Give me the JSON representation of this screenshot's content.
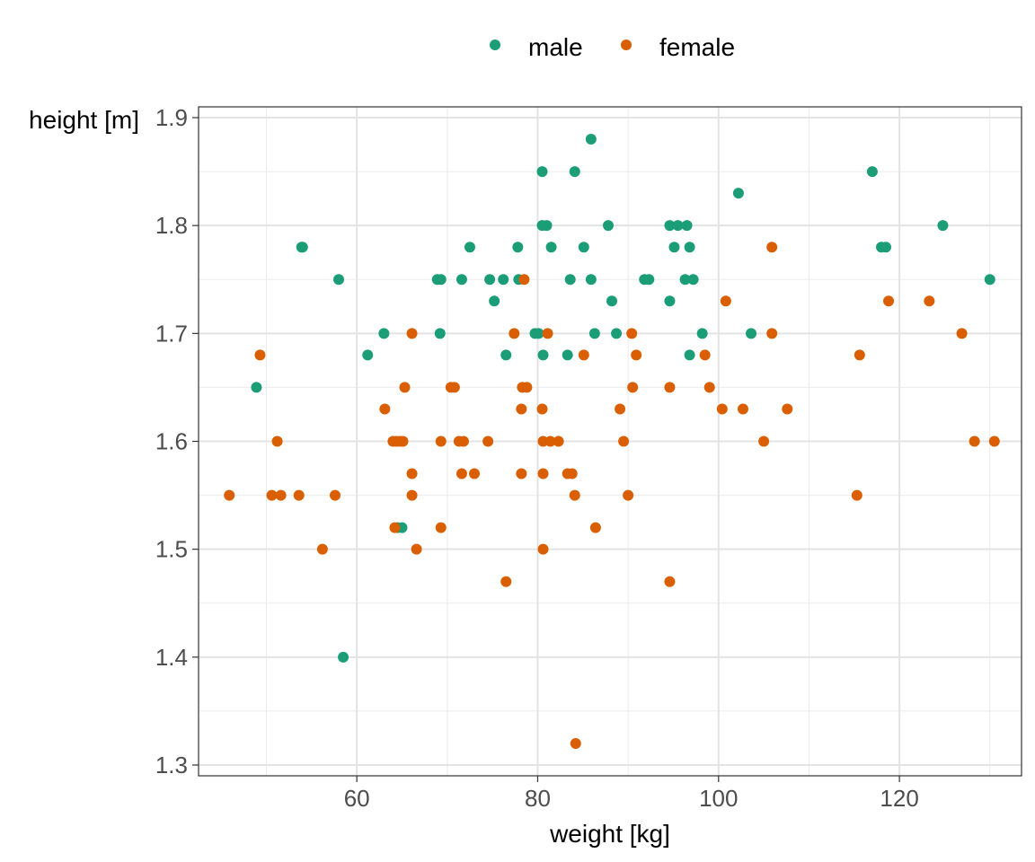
{
  "chart_data": {
    "type": "scatter",
    "title": "",
    "xlabel": "weight [kg]",
    "ylabel": "height [m]",
    "xlim": [
      42.5,
      133.5
    ],
    "ylim": [
      1.29,
      1.91
    ],
    "x_ticks": [
      60,
      80,
      100,
      120
    ],
    "y_ticks": [
      1.3,
      1.4,
      1.5,
      1.6,
      1.7,
      1.8,
      1.9
    ],
    "x_tick_labels": [
      "60",
      "80",
      "100",
      "120"
    ],
    "y_tick_labels": [
      "1.3",
      "1.4",
      "1.5",
      "1.6",
      "1.7",
      "1.8",
      "1.9"
    ],
    "grid": true,
    "legend_position": "top",
    "series": [
      {
        "name": "male",
        "color": "#1b9e77",
        "points": [
          [
            48.9,
            1.65
          ],
          [
            53.9,
            1.78
          ],
          [
            54.0,
            1.78
          ],
          [
            58.0,
            1.75
          ],
          [
            58.5,
            1.4
          ],
          [
            61.2,
            1.68
          ],
          [
            63.0,
            1.7
          ],
          [
            64.5,
            1.52
          ],
          [
            65.0,
            1.52
          ],
          [
            68.9,
            1.75
          ],
          [
            69.2,
            1.7
          ],
          [
            69.3,
            1.75
          ],
          [
            71.6,
            1.75
          ],
          [
            72.5,
            1.78
          ],
          [
            74.7,
            1.75
          ],
          [
            75.2,
            1.73
          ],
          [
            76.2,
            1.75
          ],
          [
            76.5,
            1.68
          ],
          [
            77.8,
            1.78
          ],
          [
            77.9,
            1.75
          ],
          [
            79.7,
            1.7
          ],
          [
            80.1,
            1.7
          ],
          [
            80.5,
            1.85
          ],
          [
            80.5,
            1.8
          ],
          [
            80.6,
            1.68
          ],
          [
            81.0,
            1.8
          ],
          [
            81.5,
            1.78
          ],
          [
            83.3,
            1.68
          ],
          [
            83.6,
            1.75
          ],
          [
            84.1,
            1.85
          ],
          [
            85.1,
            1.78
          ],
          [
            85.9,
            1.88
          ],
          [
            85.9,
            1.75
          ],
          [
            86.3,
            1.7
          ],
          [
            87.8,
            1.8
          ],
          [
            88.2,
            1.73
          ],
          [
            88.7,
            1.7
          ],
          [
            91.8,
            1.75
          ],
          [
            92.3,
            1.75
          ],
          [
            94.6,
            1.8
          ],
          [
            94.6,
            1.73
          ],
          [
            95.1,
            1.78
          ],
          [
            95.5,
            1.8
          ],
          [
            96.3,
            1.75
          ],
          [
            96.5,
            1.8
          ],
          [
            96.8,
            1.68
          ],
          [
            96.8,
            1.78
          ],
          [
            97.2,
            1.75
          ],
          [
            98.2,
            1.7
          ],
          [
            102.2,
            1.83
          ],
          [
            103.6,
            1.7
          ],
          [
            117.0,
            1.85
          ],
          [
            118.0,
            1.78
          ],
          [
            118.5,
            1.78
          ],
          [
            124.8,
            1.8
          ],
          [
            130.0,
            1.75
          ]
        ]
      },
      {
        "name": "female",
        "color": "#d95f02",
        "points": [
          [
            45.9,
            1.55
          ],
          [
            49.3,
            1.68
          ],
          [
            50.6,
            1.55
          ],
          [
            51.2,
            1.6
          ],
          [
            51.6,
            1.55
          ],
          [
            53.6,
            1.55
          ],
          [
            56.2,
            1.5
          ],
          [
            57.6,
            1.55
          ],
          [
            63.1,
            1.63
          ],
          [
            64.0,
            1.6
          ],
          [
            64.2,
            1.52
          ],
          [
            64.4,
            1.6
          ],
          [
            64.8,
            1.6
          ],
          [
            65.1,
            1.6
          ],
          [
            65.3,
            1.65
          ],
          [
            66.1,
            1.7
          ],
          [
            66.1,
            1.57
          ],
          [
            66.1,
            1.55
          ],
          [
            66.6,
            1.5
          ],
          [
            69.3,
            1.6
          ],
          [
            69.3,
            1.52
          ],
          [
            70.4,
            1.65
          ],
          [
            70.8,
            1.65
          ],
          [
            71.3,
            1.6
          ],
          [
            71.6,
            1.57
          ],
          [
            71.8,
            1.6
          ],
          [
            73.0,
            1.57
          ],
          [
            74.5,
            1.6
          ],
          [
            76.5,
            1.47
          ],
          [
            77.4,
            1.7
          ],
          [
            78.2,
            1.57
          ],
          [
            78.2,
            1.63
          ],
          [
            78.3,
            1.65
          ],
          [
            78.5,
            1.75
          ],
          [
            78.8,
            1.65
          ],
          [
            80.5,
            1.63
          ],
          [
            80.6,
            1.6
          ],
          [
            80.6,
            1.57
          ],
          [
            80.6,
            1.5
          ],
          [
            81.1,
            1.7
          ],
          [
            81.4,
            1.6
          ],
          [
            82.3,
            1.6
          ],
          [
            83.3,
            1.57
          ],
          [
            83.8,
            1.57
          ],
          [
            84.1,
            1.55
          ],
          [
            84.2,
            1.32
          ],
          [
            85.1,
            1.68
          ],
          [
            86.4,
            1.52
          ],
          [
            89.1,
            1.63
          ],
          [
            89.5,
            1.6
          ],
          [
            90.0,
            1.55
          ],
          [
            90.4,
            1.7
          ],
          [
            90.5,
            1.65
          ],
          [
            90.9,
            1.68
          ],
          [
            94.6,
            1.65
          ],
          [
            94.6,
            1.47
          ],
          [
            98.5,
            1.68
          ],
          [
            99.0,
            1.65
          ],
          [
            100.4,
            1.63
          ],
          [
            100.8,
            1.73
          ],
          [
            102.7,
            1.63
          ],
          [
            105.0,
            1.6
          ],
          [
            105.9,
            1.78
          ],
          [
            105.9,
            1.7
          ],
          [
            107.6,
            1.63
          ],
          [
            115.3,
            1.55
          ],
          [
            115.6,
            1.68
          ],
          [
            118.8,
            1.73
          ],
          [
            123.3,
            1.73
          ],
          [
            126.9,
            1.7
          ],
          [
            128.3,
            1.6
          ],
          [
            130.5,
            1.6
          ]
        ]
      }
    ]
  }
}
